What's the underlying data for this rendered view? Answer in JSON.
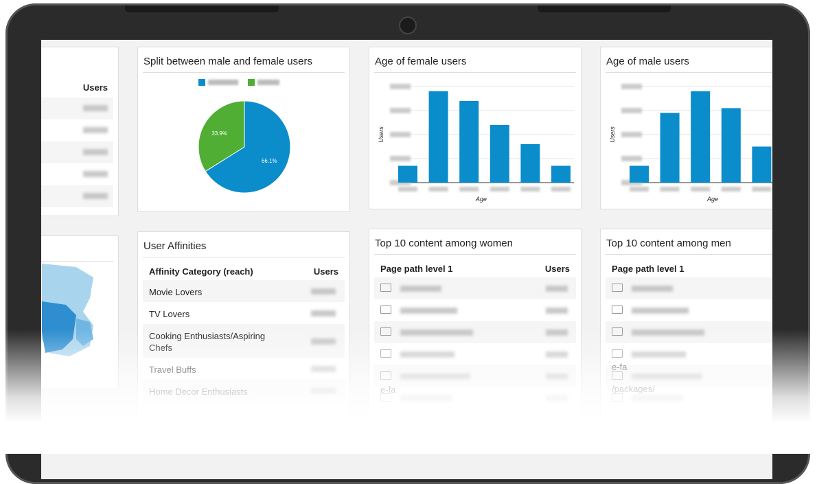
{
  "users_table": {
    "columns": [
      "Users"
    ]
  },
  "gender_split": {
    "title": "Split between male and female users",
    "type": "pie",
    "values": [
      66.1,
      33.9
    ],
    "value_labels": [
      "66.1%",
      "33.9%"
    ],
    "colors": [
      "#0b8ccb",
      "#4fae33"
    ]
  },
  "female_age": {
    "title": "Age of female users",
    "type": "bar",
    "y_label": "Users",
    "x_label": "Age",
    "categories": [
      null,
      null,
      null,
      null,
      null,
      null
    ],
    "values": [
      0.7,
      3.8,
      3.4,
      2.4,
      1.6,
      0.7
    ],
    "ylim": [
      0,
      4
    ],
    "yticks": [
      0,
      1,
      2,
      3,
      4
    ],
    "color": "#0b8ccb",
    "grid": true
  },
  "male_age": {
    "title": "Age of male users",
    "type": "bar",
    "y_label": "Users",
    "x_label": "Age",
    "categories": [
      null,
      null,
      null,
      null,
      null
    ],
    "values": [
      0.7,
      2.9,
      3.8,
      3.1,
      1.5
    ],
    "ylim": [
      0,
      4
    ],
    "yticks": [
      0,
      1,
      2,
      3,
      4
    ],
    "color": "#0b8ccb",
    "grid": true
  },
  "user_affinities": {
    "title": "User Affinities",
    "columns": [
      "Affinity Category (reach)",
      "Users"
    ],
    "rows": [
      "Movie Lovers",
      "TV Lovers",
      "Cooking Enthusiasts/Aspiring Chefs",
      "Travel Buffs",
      "Home Decor Enthusiasts"
    ]
  },
  "top_women": {
    "title": "Top 10 content among women",
    "columns": [
      "Page path level 1",
      "Users"
    ],
    "fragments": [
      "e-fa"
    ]
  },
  "top_men": {
    "title": "Top 10 content among men",
    "columns": [
      "Page path level 1"
    ],
    "fragments": [
      "e-fa",
      "/packages/"
    ]
  }
}
